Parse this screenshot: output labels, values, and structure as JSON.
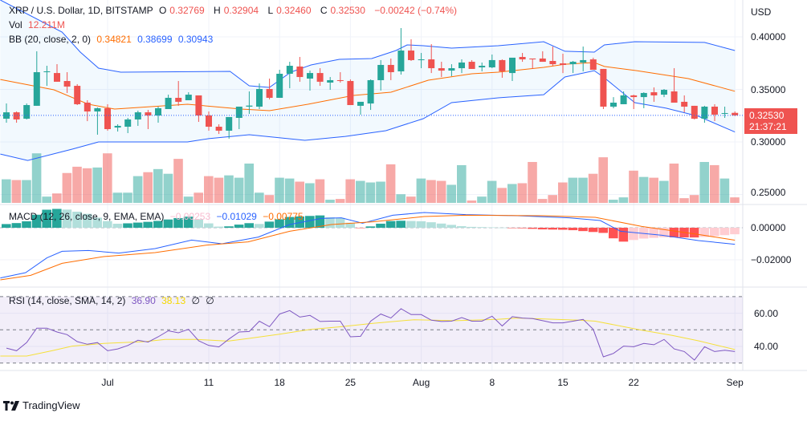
{
  "header": {
    "symbol": "XRP / U.S. Dollar, 1D, BITSTAMP",
    "o_label": "O",
    "o": "0.32769",
    "h_label": "H",
    "h": "0.32904",
    "l_label": "L",
    "l": "0.32460",
    "c_label": "C",
    "c": "0.32530",
    "change": "−0.00242 (−0.74%)"
  },
  "vol_legend": {
    "label": "Vol",
    "value": "12.211M"
  },
  "bb_legend": {
    "label": "BB (20, close, 2, 0)",
    "basis": "0.34821",
    "upper": "0.38699",
    "lower": "0.30943"
  },
  "macd_legend": {
    "label": "MACD (12, 26, close, 9, EMA, EMA)",
    "hist": "−0.00253",
    "macd": "−0.01029",
    "signal": "−0.00775"
  },
  "rsi_legend": {
    "label": "RSI (14, close, SMA, 14, 2)",
    "rsi": "36.90",
    "ma": "38.13",
    "x1": "∅",
    "x2": "∅"
  },
  "price_axis": {
    "currency": "USD",
    "ticks": [
      "0.40000",
      "0.35000",
      "0.30000",
      "0.25000"
    ]
  },
  "macd_axis": {
    "ticks": [
      "0.00000",
      "−0.02000"
    ]
  },
  "rsi_axis": {
    "ticks": [
      "60.00",
      "40.00"
    ]
  },
  "last_price": {
    "value": "0.32530",
    "countdown": "21:37:21"
  },
  "time_axis": [
    {
      "label": "Jul",
      "day": 10
    },
    {
      "label": "11",
      "day": 20
    },
    {
      "label": "18",
      "day": 27
    },
    {
      "label": "25",
      "day": 34
    },
    {
      "label": "Aug",
      "day": 41
    },
    {
      "label": "8",
      "day": 48
    },
    {
      "label": "15",
      "day": 55
    },
    {
      "label": "22",
      "day": 62
    },
    {
      "label": "Sep",
      "day": 72
    }
  ],
  "logo": {
    "text": "TradingView"
  },
  "colors": {
    "up": "#26a69a",
    "down": "#ef5350",
    "bb_band": "#2962ff",
    "bb_basis": "#ff6d00",
    "macd": "#2962ff",
    "signal": "#ff6d00",
    "rsi": "#7e57c2",
    "rsi_ma": "#f5e03a"
  },
  "chart_data": {
    "type": "candlestick",
    "ohlcv_fields": [
      "open",
      "high",
      "low",
      "close",
      "volume_M"
    ],
    "candles": [
      [
        0.3221,
        0.3366,
        0.3183,
        0.3282,
        52.2
      ],
      [
        0.3282,
        0.329,
        0.3183,
        0.3214,
        50.5
      ],
      [
        0.3221,
        0.3366,
        0.3214,
        0.3351,
        50.5
      ],
      [
        0.3344,
        0.3863,
        0.3344,
        0.3664,
        109.6
      ],
      [
        0.3664,
        0.3725,
        0.3534,
        0.3672,
        13.9
      ],
      [
        0.3656,
        0.374,
        0.3573,
        0.3573,
        20.9
      ],
      [
        0.358,
        0.3664,
        0.3466,
        0.3527,
        66.1
      ],
      [
        0.3534,
        0.355,
        0.3351,
        0.3359,
        80.0
      ],
      [
        0.3374,
        0.3397,
        0.3198,
        0.329,
        76.6
      ],
      [
        0.329,
        0.3328,
        0.3069,
        0.3321,
        78.3
      ],
      [
        0.3321,
        0.3359,
        0.3107,
        0.3122,
        109.6
      ],
      [
        0.3137,
        0.3168,
        0.3099,
        0.3153,
        22.6
      ],
      [
        0.3145,
        0.3229,
        0.3084,
        0.3214,
        22.6
      ],
      [
        0.3214,
        0.3298,
        0.3153,
        0.3282,
        59.2
      ],
      [
        0.3282,
        0.3305,
        0.3122,
        0.3252,
        67.9
      ],
      [
        0.3252,
        0.3336,
        0.3183,
        0.3321,
        74.8
      ],
      [
        0.3313,
        0.345,
        0.3313,
        0.342,
        64.4
      ],
      [
        0.342,
        0.358,
        0.3344,
        0.3382,
        97.4
      ],
      [
        0.3397,
        0.3473,
        0.3397,
        0.345,
        13.9
      ],
      [
        0.3443,
        0.3443,
        0.3191,
        0.3252,
        22.6
      ],
      [
        0.3252,
        0.329,
        0.3107,
        0.3145,
        59.2
      ],
      [
        0.3145,
        0.3168,
        0.3076,
        0.3107,
        55.7
      ],
      [
        0.3107,
        0.3237,
        0.3031,
        0.3237,
        60.9
      ],
      [
        0.3229,
        0.3336,
        0.3122,
        0.3336,
        55.7
      ],
      [
        0.3336,
        0.3481,
        0.3267,
        0.3346,
        87.0
      ],
      [
        0.3336,
        0.3557,
        0.3313,
        0.3504,
        22.6
      ],
      [
        0.3504,
        0.3603,
        0.3405,
        0.342,
        17.4
      ],
      [
        0.342,
        0.3687,
        0.342,
        0.3649,
        55.7
      ],
      [
        0.3649,
        0.3763,
        0.3511,
        0.3725,
        53.9
      ],
      [
        0.3718,
        0.3809,
        0.3573,
        0.3618,
        47.0
      ],
      [
        0.3603,
        0.3679,
        0.3489,
        0.3656,
        43.5
      ],
      [
        0.3656,
        0.3702,
        0.3534,
        0.3573,
        52.2
      ],
      [
        0.3565,
        0.3618,
        0.3496,
        0.3588,
        7.0
      ],
      [
        0.3588,
        0.3664,
        0.3565,
        0.358,
        8.7
      ],
      [
        0.358,
        0.3595,
        0.3351,
        0.3351,
        52.2
      ],
      [
        0.3344,
        0.3382,
        0.326,
        0.3382,
        48.7
      ],
      [
        0.3366,
        0.3595,
        0.3305,
        0.3588,
        45.2
      ],
      [
        0.3588,
        0.3779,
        0.3489,
        0.3733,
        47.0
      ],
      [
        0.3733,
        0.3794,
        0.3588,
        0.3664,
        85.3
      ],
      [
        0.3672,
        0.4084,
        0.3641,
        0.387,
        19.1
      ],
      [
        0.387,
        0.3977,
        0.3771,
        0.3779,
        13.9
      ],
      [
        0.3779,
        0.3847,
        0.3702,
        0.3786,
        53.9
      ],
      [
        0.3786,
        0.3931,
        0.3656,
        0.3702,
        50.5
      ],
      [
        0.3702,
        0.3763,
        0.3618,
        0.3679,
        48.7
      ],
      [
        0.3679,
        0.374,
        0.3626,
        0.3702,
        40.0
      ],
      [
        0.3702,
        0.3786,
        0.3656,
        0.3756,
        83.5
      ],
      [
        0.3763,
        0.3779,
        0.3695,
        0.3695,
        5.2
      ],
      [
        0.371,
        0.3756,
        0.3672,
        0.3725,
        13.9
      ],
      [
        0.371,
        0.3832,
        0.3702,
        0.3779,
        48.7
      ],
      [
        0.3779,
        0.3786,
        0.3611,
        0.3672,
        33.1
      ],
      [
        0.3656,
        0.3802,
        0.358,
        0.3802,
        41.8
      ],
      [
        0.3809,
        0.3847,
        0.3763,
        0.3786,
        43.5
      ],
      [
        0.3794,
        0.3794,
        0.3695,
        0.3786,
        90.5
      ],
      [
        0.3794,
        0.3863,
        0.3763,
        0.3763,
        8.7
      ],
      [
        0.3771,
        0.3908,
        0.3725,
        0.374,
        17.4
      ],
      [
        0.3748,
        0.384,
        0.3656,
        0.3733,
        45.2
      ],
      [
        0.374,
        0.3771,
        0.3656,
        0.3763,
        55.7
      ],
      [
        0.3756,
        0.3908,
        0.3672,
        0.3779,
        55.7
      ],
      [
        0.3786,
        0.3802,
        0.3687,
        0.3687,
        64.4
      ],
      [
        0.3695,
        0.3695,
        0.3313,
        0.3336,
        100.9
      ],
      [
        0.3336,
        0.3427,
        0.3321,
        0.3374,
        7.0
      ],
      [
        0.3359,
        0.3481,
        0.3359,
        0.3443,
        12.2
      ],
      [
        0.3443,
        0.345,
        0.3313,
        0.3427,
        71.3
      ],
      [
        0.3427,
        0.3473,
        0.3321,
        0.3466,
        57.4
      ],
      [
        0.3473,
        0.3519,
        0.3382,
        0.3443,
        55.7
      ],
      [
        0.345,
        0.3504,
        0.3427,
        0.3496,
        48.7
      ],
      [
        0.3481,
        0.3702,
        0.3374,
        0.3374,
        87.0
      ],
      [
        0.3382,
        0.3443,
        0.3282,
        0.3336,
        10.4
      ],
      [
        0.3344,
        0.3344,
        0.3214,
        0.3221,
        17.4
      ],
      [
        0.3221,
        0.3344,
        0.3183,
        0.3336,
        90.5
      ],
      [
        0.3336,
        0.3359,
        0.3198,
        0.326,
        83.5
      ],
      [
        0.327,
        0.3336,
        0.3229,
        0.3275,
        53.9
      ],
      [
        0.32769,
        0.32904,
        0.3246,
        0.3253,
        12.211
      ]
    ],
    "bollinger": {
      "upper": [
        [
          -0.6,
          0.4351
        ],
        [
          5.5,
          0.4046
        ],
        [
          7.3,
          0.3855
        ],
        [
          9.1,
          0.3702
        ],
        [
          11.3,
          0.3664
        ],
        [
          22.1,
          0.3672
        ],
        [
          24,
          0.3534
        ],
        [
          26,
          0.3519
        ],
        [
          28.1,
          0.3664
        ],
        [
          30.1,
          0.3733
        ],
        [
          32.9,
          0.3786
        ],
        [
          36.1,
          0.3794
        ],
        [
          38.5,
          0.387
        ],
        [
          39.6,
          0.3924
        ],
        [
          41.2,
          0.3916
        ],
        [
          44,
          0.3893
        ],
        [
          48.6,
          0.3916
        ],
        [
          53.1,
          0.3954
        ],
        [
          55.2,
          0.3863
        ],
        [
          58.1,
          0.3855
        ],
        [
          59.1,
          0.3924
        ],
        [
          62.1,
          0.3954
        ],
        [
          69,
          0.3947
        ],
        [
          72,
          0.38699
        ]
      ],
      "basis": [
        [
          -0.6,
          0.3595
        ],
        [
          4.7,
          0.3496
        ],
        [
          8.1,
          0.3359
        ],
        [
          10.7,
          0.3313
        ],
        [
          17.9,
          0.3359
        ],
        [
          23.2,
          0.3313
        ],
        [
          26,
          0.3298
        ],
        [
          29.8,
          0.3359
        ],
        [
          34.3,
          0.3443
        ],
        [
          38,
          0.3473
        ],
        [
          41.7,
          0.3588
        ],
        [
          46,
          0.3649
        ],
        [
          48.6,
          0.3664
        ],
        [
          53.1,
          0.371
        ],
        [
          55.2,
          0.374
        ],
        [
          58.1,
          0.3756
        ],
        [
          59.1,
          0.3718
        ],
        [
          62.3,
          0.3679
        ],
        [
          67.4,
          0.3603
        ],
        [
          72,
          0.34821
        ]
      ],
      "lower": [
        [
          -0.6,
          0.2885
        ],
        [
          2.1,
          0.2824
        ],
        [
          6.5,
          0.2931
        ],
        [
          9.1,
          0.3
        ],
        [
          17.9,
          0.3
        ],
        [
          20,
          0.3031
        ],
        [
          24,
          0.3069
        ],
        [
          29.5,
          0.3015
        ],
        [
          33.5,
          0.3053
        ],
        [
          37.5,
          0.3107
        ],
        [
          41.2,
          0.3221
        ],
        [
          44,
          0.3374
        ],
        [
          48.6,
          0.342
        ],
        [
          53.1,
          0.345
        ],
        [
          55.2,
          0.3618
        ],
        [
          58.1,
          0.3679
        ],
        [
          59.1,
          0.3611
        ],
        [
          62.1,
          0.3374
        ],
        [
          65.2,
          0.3321
        ],
        [
          68.4,
          0.3244
        ],
        [
          72,
          0.30943
        ]
      ]
    },
    "macd": {
      "macd_line": [
        [
          -0.6,
          -0.0313
        ],
        [
          1.9,
          -0.028
        ],
        [
          4.0,
          -0.0188
        ],
        [
          5.5,
          -0.0147
        ],
        [
          8.1,
          -0.0142
        ],
        [
          11.1,
          -0.0158
        ],
        [
          14.7,
          -0.013
        ],
        [
          18.3,
          -0.0077
        ],
        [
          21.3,
          -0.01
        ],
        [
          24.9,
          -0.0058
        ],
        [
          28,
          0.002
        ],
        [
          31.1,
          0.0058
        ],
        [
          33.1,
          0.0062
        ],
        [
          35.2,
          0.0028
        ],
        [
          38.2,
          0.0078
        ],
        [
          41.3,
          0.0095
        ],
        [
          45.4,
          0.0082
        ],
        [
          50.5,
          0.0075
        ],
        [
          55.6,
          0.0062
        ],
        [
          58.7,
          0.0045
        ],
        [
          60.7,
          -0.0022
        ],
        [
          64.8,
          -0.0047
        ],
        [
          68.4,
          -0.008
        ],
        [
          72,
          -0.01029
        ]
      ],
      "signal_line": [
        [
          -0.6,
          -0.0325
        ],
        [
          2.4,
          -0.0297
        ],
        [
          5.5,
          -0.0222
        ],
        [
          9.6,
          -0.018
        ],
        [
          14.7,
          -0.0155
        ],
        [
          19.8,
          -0.0108
        ],
        [
          23.9,
          -0.0088
        ],
        [
          28,
          -0.0022
        ],
        [
          32.1,
          0.002
        ],
        [
          36.2,
          0.0037
        ],
        [
          41.3,
          0.007
        ],
        [
          45.4,
          0.0078
        ],
        [
          53.1,
          0.0075
        ],
        [
          58.2,
          0.0065
        ],
        [
          62.8,
          0.0008
        ],
        [
          68.4,
          -0.0042
        ],
        [
          72,
          -0.00775
        ]
      ]
    },
    "rsi": {
      "values": [
        39.0,
        37.4,
        42.3,
        51.0,
        51.0,
        48.7,
        47.1,
        42.9,
        41.3,
        42.3,
        37.4,
        38.5,
        40.6,
        43.7,
        42.6,
        45.8,
        49.4,
        48.2,
        50.3,
        43.4,
        40.6,
        39.7,
        44.5,
        48.7,
        49.0,
        55.2,
        51.9,
        59.5,
        61.6,
        57.7,
        58.7,
        55.0,
        55.2,
        55.2,
        45.8,
        46.1,
        55.2,
        59.5,
        57.1,
        62.7,
        59.2,
        59.2,
        55.8,
        55.0,
        55.2,
        57.4,
        55.2,
        55.2,
        58.2,
        52.3,
        57.9,
        57.1,
        56.8,
        55.5,
        54.2,
        54.2,
        55.2,
        56.3,
        50.3,
        33.7,
        35.8,
        40.2,
        39.8,
        41.8,
        41.0,
        44.2,
        38.5,
        36.9,
        31.8,
        39.8,
        36.9,
        37.7,
        36.9
      ],
      "ma": [
        [
          -0.6,
          34.2
        ],
        [
          2.0,
          34.2
        ],
        [
          4.5,
          37.4
        ],
        [
          6.5,
          40.2
        ],
        [
          9.6,
          41.8
        ],
        [
          13.7,
          42.9
        ],
        [
          15.7,
          44.2
        ],
        [
          18.8,
          44.2
        ],
        [
          21.9,
          43.2
        ],
        [
          23.9,
          44.8
        ],
        [
          27,
          47.4
        ],
        [
          30.1,
          50.3
        ],
        [
          33.1,
          51.9
        ],
        [
          36.2,
          53.9
        ],
        [
          40.3,
          56.1
        ],
        [
          44.4,
          55.5
        ],
        [
          48.5,
          56.3
        ],
        [
          50.5,
          57.1
        ],
        [
          56.6,
          55.8
        ],
        [
          58.2,
          55.2
        ],
        [
          62.8,
          49.8
        ],
        [
          65.8,
          46.6
        ],
        [
          68.4,
          43.4
        ],
        [
          72,
          38.13
        ]
      ],
      "levels": [
        70,
        50,
        30
      ]
    },
    "price_ylim": [
      0.23,
      0.43
    ],
    "macd_ylim": [
      -0.035,
      0.015
    ],
    "rsi_ylim": [
      25,
      75
    ]
  }
}
